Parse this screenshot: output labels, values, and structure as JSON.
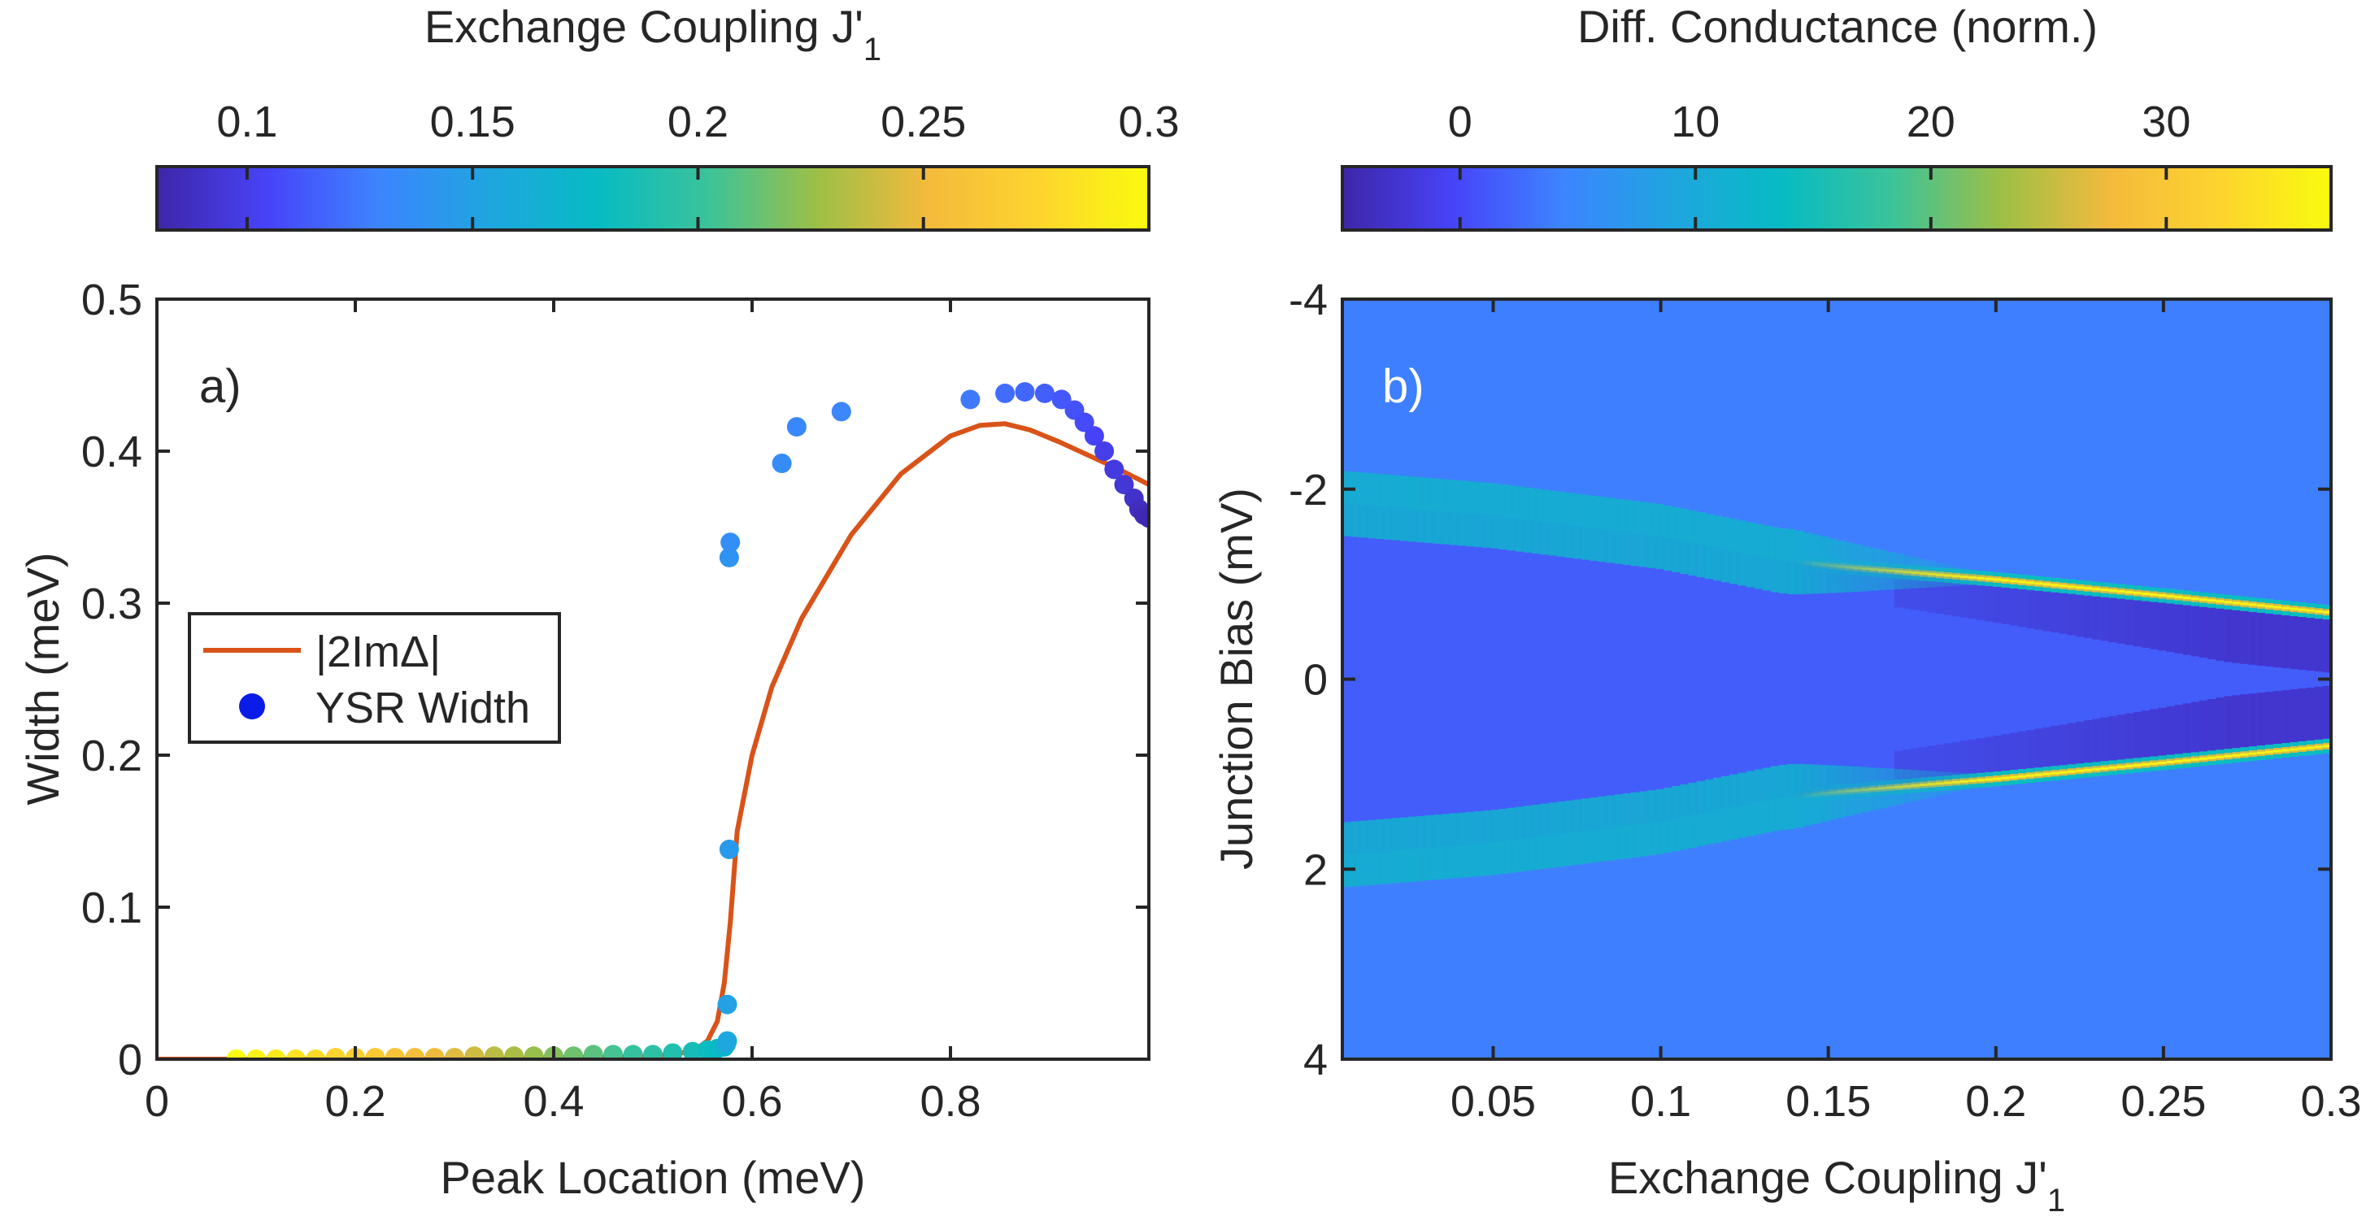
{
  "colormap": [
    "#3e26a8",
    "#4743f8",
    "#3d84ff",
    "#1fa5e0",
    "#07bbc3",
    "#3bc39a",
    "#9ebf46",
    "#f4ba3c",
    "#fdd42e",
    "#f9fb0e"
  ],
  "chart_data": [
    {
      "id": "a",
      "type": "scatter",
      "panel_label": "a)",
      "xlabel": "Peak Location (meV)",
      "ylabel": "Width (meV)",
      "xlim": [
        0,
        1.0
      ],
      "ylim": [
        0,
        0.5
      ],
      "xticks": [
        0,
        0.2,
        0.4,
        0.6,
        0.8
      ],
      "xtick_labels": [
        "0",
        "0.2",
        "0.4",
        "0.6",
        "0.8"
      ],
      "yticks": [
        0,
        0.1,
        0.2,
        0.3,
        0.4,
        0.5
      ],
      "ytick_labels": [
        "0",
        "0.1",
        "0.2",
        "0.3",
        "0.4",
        "0.5"
      ],
      "legend": {
        "location": "center-left",
        "entries": [
          {
            "label": "|2ImΔ|",
            "kind": "line",
            "color": "#d95319"
          },
          {
            "label": "YSR Width",
            "kind": "marker",
            "color": "#0b1be8"
          }
        ]
      },
      "series": [
        {
          "name": "|2ImΔ|",
          "kind": "line",
          "color": "#d95319",
          "x": [
            0,
            0.1,
            0.2,
            0.3,
            0.4,
            0.5,
            0.54,
            0.555,
            0.565,
            0.572,
            0.578,
            0.585,
            0.6,
            0.62,
            0.65,
            0.7,
            0.75,
            0.8,
            0.83,
            0.855,
            0.88,
            0.91,
            0.94,
            0.97,
            1.0
          ],
          "y": [
            0,
            0,
            0,
            0,
            0.001,
            0.002,
            0.005,
            0.012,
            0.025,
            0.05,
            0.09,
            0.15,
            0.2,
            0.245,
            0.29,
            0.345,
            0.385,
            0.41,
            0.417,
            0.418,
            0.414,
            0.406,
            0.397,
            0.388,
            0.378
          ]
        },
        {
          "name": "YSR Width",
          "kind": "scatter",
          "color_by": "Exchange Coupling J'1",
          "x": [
            0.08,
            0.1,
            0.12,
            0.14,
            0.16,
            0.18,
            0.2,
            0.22,
            0.24,
            0.26,
            0.28,
            0.3,
            0.32,
            0.34,
            0.36,
            0.38,
            0.4,
            0.42,
            0.44,
            0.46,
            0.48,
            0.5,
            0.52,
            0.54,
            0.555,
            0.565,
            0.572,
            0.574,
            0.575,
            0.575,
            0.577,
            0.577,
            0.578,
            0.63,
            0.645,
            0.69,
            0.82,
            0.855,
            0.875,
            0.895,
            0.912,
            0.925,
            0.935,
            0.945,
            0.955,
            0.965,
            0.975,
            0.985,
            0.99,
            0.995,
            1.0
          ],
          "y": [
            0,
            0,
            0,
            0,
            0,
            0.001,
            0.001,
            0.001,
            0.001,
            0.001,
            0.001,
            0.001,
            0.002,
            0.002,
            0.002,
            0.002,
            0.002,
            0.002,
            0.003,
            0.003,
            0.003,
            0.003,
            0.004,
            0.005,
            0.006,
            0.007,
            0.008,
            0.01,
            0.012,
            0.036,
            0.138,
            0.33,
            0.34,
            0.392,
            0.416,
            0.426,
            0.434,
            0.438,
            0.439,
            0.438,
            0.434,
            0.427,
            0.419,
            0.41,
            0.4,
            0.388,
            0.378,
            0.369,
            0.362,
            0.358,
            0.356
          ],
          "coupling": [
            0.3,
            0.295,
            0.29,
            0.285,
            0.28,
            0.275,
            0.27,
            0.265,
            0.26,
            0.255,
            0.25,
            0.245,
            0.24,
            0.235,
            0.23,
            0.225,
            0.22,
            0.215,
            0.21,
            0.205,
            0.2,
            0.195,
            0.19,
            0.185,
            0.18,
            0.175,
            0.17,
            0.16,
            0.155,
            0.15,
            0.145,
            0.14,
            0.137,
            0.135,
            0.132,
            0.13,
            0.125,
            0.12,
            0.118,
            0.115,
            0.112,
            0.11,
            0.107,
            0.104,
            0.1,
            0.097,
            0.094,
            0.09,
            0.087,
            0.084,
            0.082
          ]
        }
      ],
      "colorbar": {
        "label": "Exchange Coupling J'",
        "label_subscript": "1",
        "range": [
          0.08,
          0.3
        ],
        "ticks": [
          0.1,
          0.15,
          0.2,
          0.25,
          0.3
        ],
        "tick_labels": [
          "0.1",
          "0.15",
          "0.2",
          "0.25",
          "0.3"
        ]
      }
    },
    {
      "id": "b",
      "type": "heatmap",
      "panel_label": "b)",
      "xlabel": "Exchange Coupling J'",
      "xlabel_subscript": "1",
      "ylabel": "Junction Bias (mV)",
      "xlim": [
        0.005,
        0.3
      ],
      "ylim": [
        4,
        -4
      ],
      "xticks": [
        0.05,
        0.1,
        0.15,
        0.2,
        0.25,
        0.3
      ],
      "xtick_labels": [
        "0.05",
        "0.1",
        "0.15",
        "0.2",
        "0.25",
        "0.3"
      ],
      "yticks": [
        -4,
        -2,
        0,
        2,
        4
      ],
      "ytick_labels": [
        "-4",
        "-2",
        "0",
        "2",
        "4"
      ],
      "background_value": 4,
      "gap_value": 1.5,
      "dark_value": -3,
      "branches": [
        {
          "coupling": [
            0.005,
            0.05,
            0.1,
            0.135,
            0.155,
            0.2,
            0.25,
            0.3
          ],
          "bias": [
            -1.85,
            -1.72,
            -1.5,
            -1.25,
            -1.18,
            -1.05,
            -0.88,
            -0.7
          ],
          "peak_value": 36
        },
        {
          "coupling": [
            0.005,
            0.05,
            0.1,
            0.135,
            0.155,
            0.2,
            0.25,
            0.3
          ],
          "bias": [
            1.85,
            1.72,
            1.5,
            1.25,
            1.18,
            1.05,
            0.88,
            0.7
          ],
          "peak_value": 36
        }
      ],
      "colorbar": {
        "label": "Diff. Conductance (norm.)",
        "range": [
          -5,
          37
        ],
        "ticks": [
          0,
          10,
          20,
          30
        ],
        "tick_labels": [
          "0",
          "10",
          "20",
          "30"
        ]
      }
    }
  ]
}
